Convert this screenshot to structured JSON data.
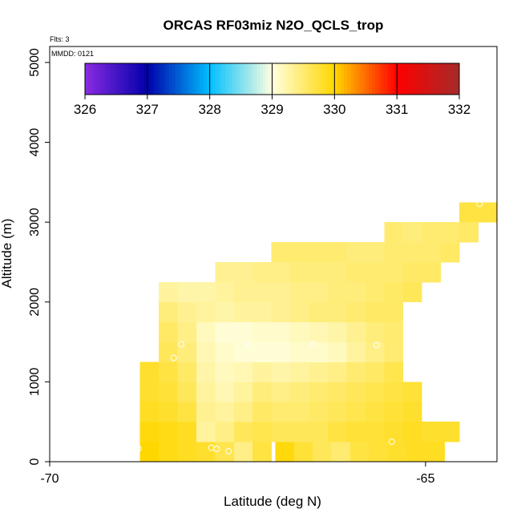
{
  "chart_data": {
    "type": "heatmap",
    "title": "ORCAS RF03miz N2O_QCLS_trop",
    "xlabel": "Latitude (deg N)",
    "ylabel": "Altitude (m)",
    "xlim": [
      -70,
      -64.05
    ],
    "ylim": [
      0,
      5200
    ],
    "x_ticks": [
      -70,
      -65
    ],
    "y_ticks": [
      0,
      1000,
      2000,
      3000,
      4000,
      5000
    ],
    "flights_note": "Flts: 3",
    "date_note": "MMDD: 0121",
    "colorbar": {
      "min": 326,
      "max": 332,
      "ticks": [
        326,
        327,
        328,
        329,
        330,
        331,
        332
      ],
      "stops": [
        "#8a2be2",
        "#0000aa",
        "#00bfff",
        "#ffffe0",
        "#ffd700",
        "#ff0000",
        "#a52a2a"
      ]
    },
    "cell_size": {
      "dlat": 0.25,
      "dalt": 250
    },
    "cells": [
      {
        "lat": -67.0,
        "alt": 0,
        "n": 4,
        "values": [
          329.95,
          329.75,
          329.6,
          329.5
        ]
      },
      {
        "lat": -66.0,
        "alt": 0,
        "n": 5,
        "values": [
          329.7,
          329.75,
          329.8,
          329.85,
          329.85
        ]
      },
      {
        "lat": -68.8,
        "alt": 0,
        "n": 2,
        "values": [
          330.0,
          329.9
        ]
      },
      {
        "lat": -68.3,
        "alt": 0,
        "n": 4,
        "values": [
          329.85,
          329.8,
          329.65,
          329.4
        ]
      },
      {
        "lat": -67.3,
        "alt": 0,
        "n": 1,
        "values": [
          329.7
        ]
      },
      {
        "lat": -68.8,
        "alt": 250,
        "n": 3,
        "values": [
          329.95,
          329.9,
          329.85
        ]
      },
      {
        "lat": -68.05,
        "alt": 250,
        "n": 2,
        "values": [
          329.3,
          329.4
        ]
      },
      {
        "lat": -67.55,
        "alt": 250,
        "n": 5,
        "values": [
          329.6,
          329.65,
          329.6,
          329.6,
          329.6
        ]
      },
      {
        "lat": -66.3,
        "alt": 250,
        "n": 7,
        "values": [
          329.7,
          329.75,
          329.75,
          329.8,
          329.85,
          329.8,
          329.8
        ]
      },
      {
        "lat": -68.8,
        "alt": 500,
        "n": 6,
        "values": [
          329.85,
          329.8,
          329.7,
          329.35,
          329.3,
          329.4
        ]
      },
      {
        "lat": -67.3,
        "alt": 500,
        "n": 9,
        "values": [
          329.55,
          329.5,
          329.5,
          329.55,
          329.6,
          329.65,
          329.7,
          329.75,
          329.8
        ]
      },
      {
        "lat": -68.8,
        "alt": 750,
        "n": 6,
        "values": [
          329.8,
          329.75,
          329.6,
          329.3,
          329.2,
          329.3
        ]
      },
      {
        "lat": -67.3,
        "alt": 750,
        "n": 9,
        "values": [
          329.45,
          329.4,
          329.45,
          329.5,
          329.55,
          329.6,
          329.65,
          329.7,
          329.75
        ]
      },
      {
        "lat": -68.8,
        "alt": 1000,
        "n": 6,
        "values": [
          329.8,
          329.7,
          329.55,
          329.25,
          329.15,
          329.2
        ]
      },
      {
        "lat": -67.3,
        "alt": 1000,
        "n": 8,
        "values": [
          329.3,
          329.25,
          329.3,
          329.35,
          329.4,
          329.5,
          329.55,
          329.65
        ]
      },
      {
        "lat": -68.55,
        "alt": 1250,
        "n": 5,
        "values": [
          329.6,
          329.45,
          329.2,
          329.1,
          329.05
        ]
      },
      {
        "lat": -67.3,
        "alt": 1250,
        "n": 8,
        "values": [
          329.05,
          329.05,
          329.1,
          329.1,
          329.15,
          329.3,
          329.4,
          329.5
        ]
      },
      {
        "lat": -68.55,
        "alt": 1500,
        "n": 5,
        "values": [
          329.55,
          329.4,
          329.15,
          329.05,
          329.05
        ]
      },
      {
        "lat": -67.3,
        "alt": 1500,
        "n": 8,
        "values": [
          329.1,
          329.1,
          329.15,
          329.2,
          329.25,
          329.35,
          329.45,
          329.5
        ]
      },
      {
        "lat": -68.55,
        "alt": 1750,
        "n": 5,
        "values": [
          329.45,
          329.35,
          329.3,
          329.25,
          329.3
        ]
      },
      {
        "lat": -67.3,
        "alt": 1750,
        "n": 8,
        "values": [
          329.3,
          329.35,
          329.4,
          329.45,
          329.45,
          329.5,
          329.55,
          329.55
        ]
      },
      {
        "lat": -68.55,
        "alt": 2000,
        "n": 5,
        "values": [
          329.3,
          329.25,
          329.25,
          329.3,
          329.35
        ]
      },
      {
        "lat": -67.3,
        "alt": 2000,
        "n": 9,
        "values": [
          329.35,
          329.35,
          329.4,
          329.4,
          329.45,
          329.45,
          329.5,
          329.55,
          329.6
        ]
      },
      {
        "lat": -68.55,
        "alt": 2250,
        "n": 0,
        "values": []
      },
      {
        "lat": -67.8,
        "alt": 2250,
        "n": 4,
        "values": [
          329.35,
          329.35,
          329.4,
          329.4
        ]
      },
      {
        "lat": -66.8,
        "alt": 2250,
        "n": 8,
        "values": [
          329.45,
          329.45,
          329.45,
          329.5,
          329.5,
          329.5,
          329.55,
          329.55
        ]
      },
      {
        "lat": -66.05,
        "alt": 2500,
        "n": 4,
        "values": [
          329.45,
          329.45,
          329.5,
          329.5
        ]
      },
      {
        "lat": -65.3,
        "alt": 2500,
        "n": 3,
        "values": [
          329.5,
          329.5,
          329.55
        ]
      },
      {
        "lat": -65.3,
        "alt": 2750,
        "n": 4,
        "values": [
          329.45,
          329.5,
          329.5,
          329.55
        ]
      },
      {
        "lat": -64.3,
        "alt": 3000,
        "n": 1,
        "values": [
          329.7
        ]
      }
    ],
    "blocks": [
      {
        "lat0": -67.8,
        "lat1": -66.55,
        "alt0": 2250,
        "alt1": 2500,
        "value": 329.45
      },
      {
        "lat0": -68.55,
        "lat1": -67.8,
        "alt0": 2000,
        "alt1": 2250,
        "value": 329.3
      },
      {
        "lat0": -67.05,
        "lat1": -65.55,
        "alt0": 2500,
        "alt1": 2750,
        "value": 329.5
      },
      {
        "lat0": -65.55,
        "lat1": -64.8,
        "alt0": 2750,
        "alt1": 3000,
        "value": 329.5
      },
      {
        "lat0": -64.55,
        "lat1": -64.3,
        "alt0": 3000,
        "alt1": 3250,
        "value": 329.7
      }
    ],
    "samples": [
      {
        "lat": -68.85,
        "alt": 160
      },
      {
        "lat": -68.82,
        "alt": 165
      },
      {
        "lat": -68.35,
        "alt": 1300
      },
      {
        "lat": -68.25,
        "alt": 1470
      },
      {
        "lat": -67.85,
        "alt": 175
      },
      {
        "lat": -67.78,
        "alt": 160
      },
      {
        "lat": -67.62,
        "alt": 130
      },
      {
        "lat": -67.35,
        "alt": 1460
      },
      {
        "lat": -66.5,
        "alt": 1470
      },
      {
        "lat": -65.65,
        "alt": 1460
      },
      {
        "lat": -65.45,
        "alt": 250
      },
      {
        "lat": -64.28,
        "alt": 3230
      }
    ]
  }
}
